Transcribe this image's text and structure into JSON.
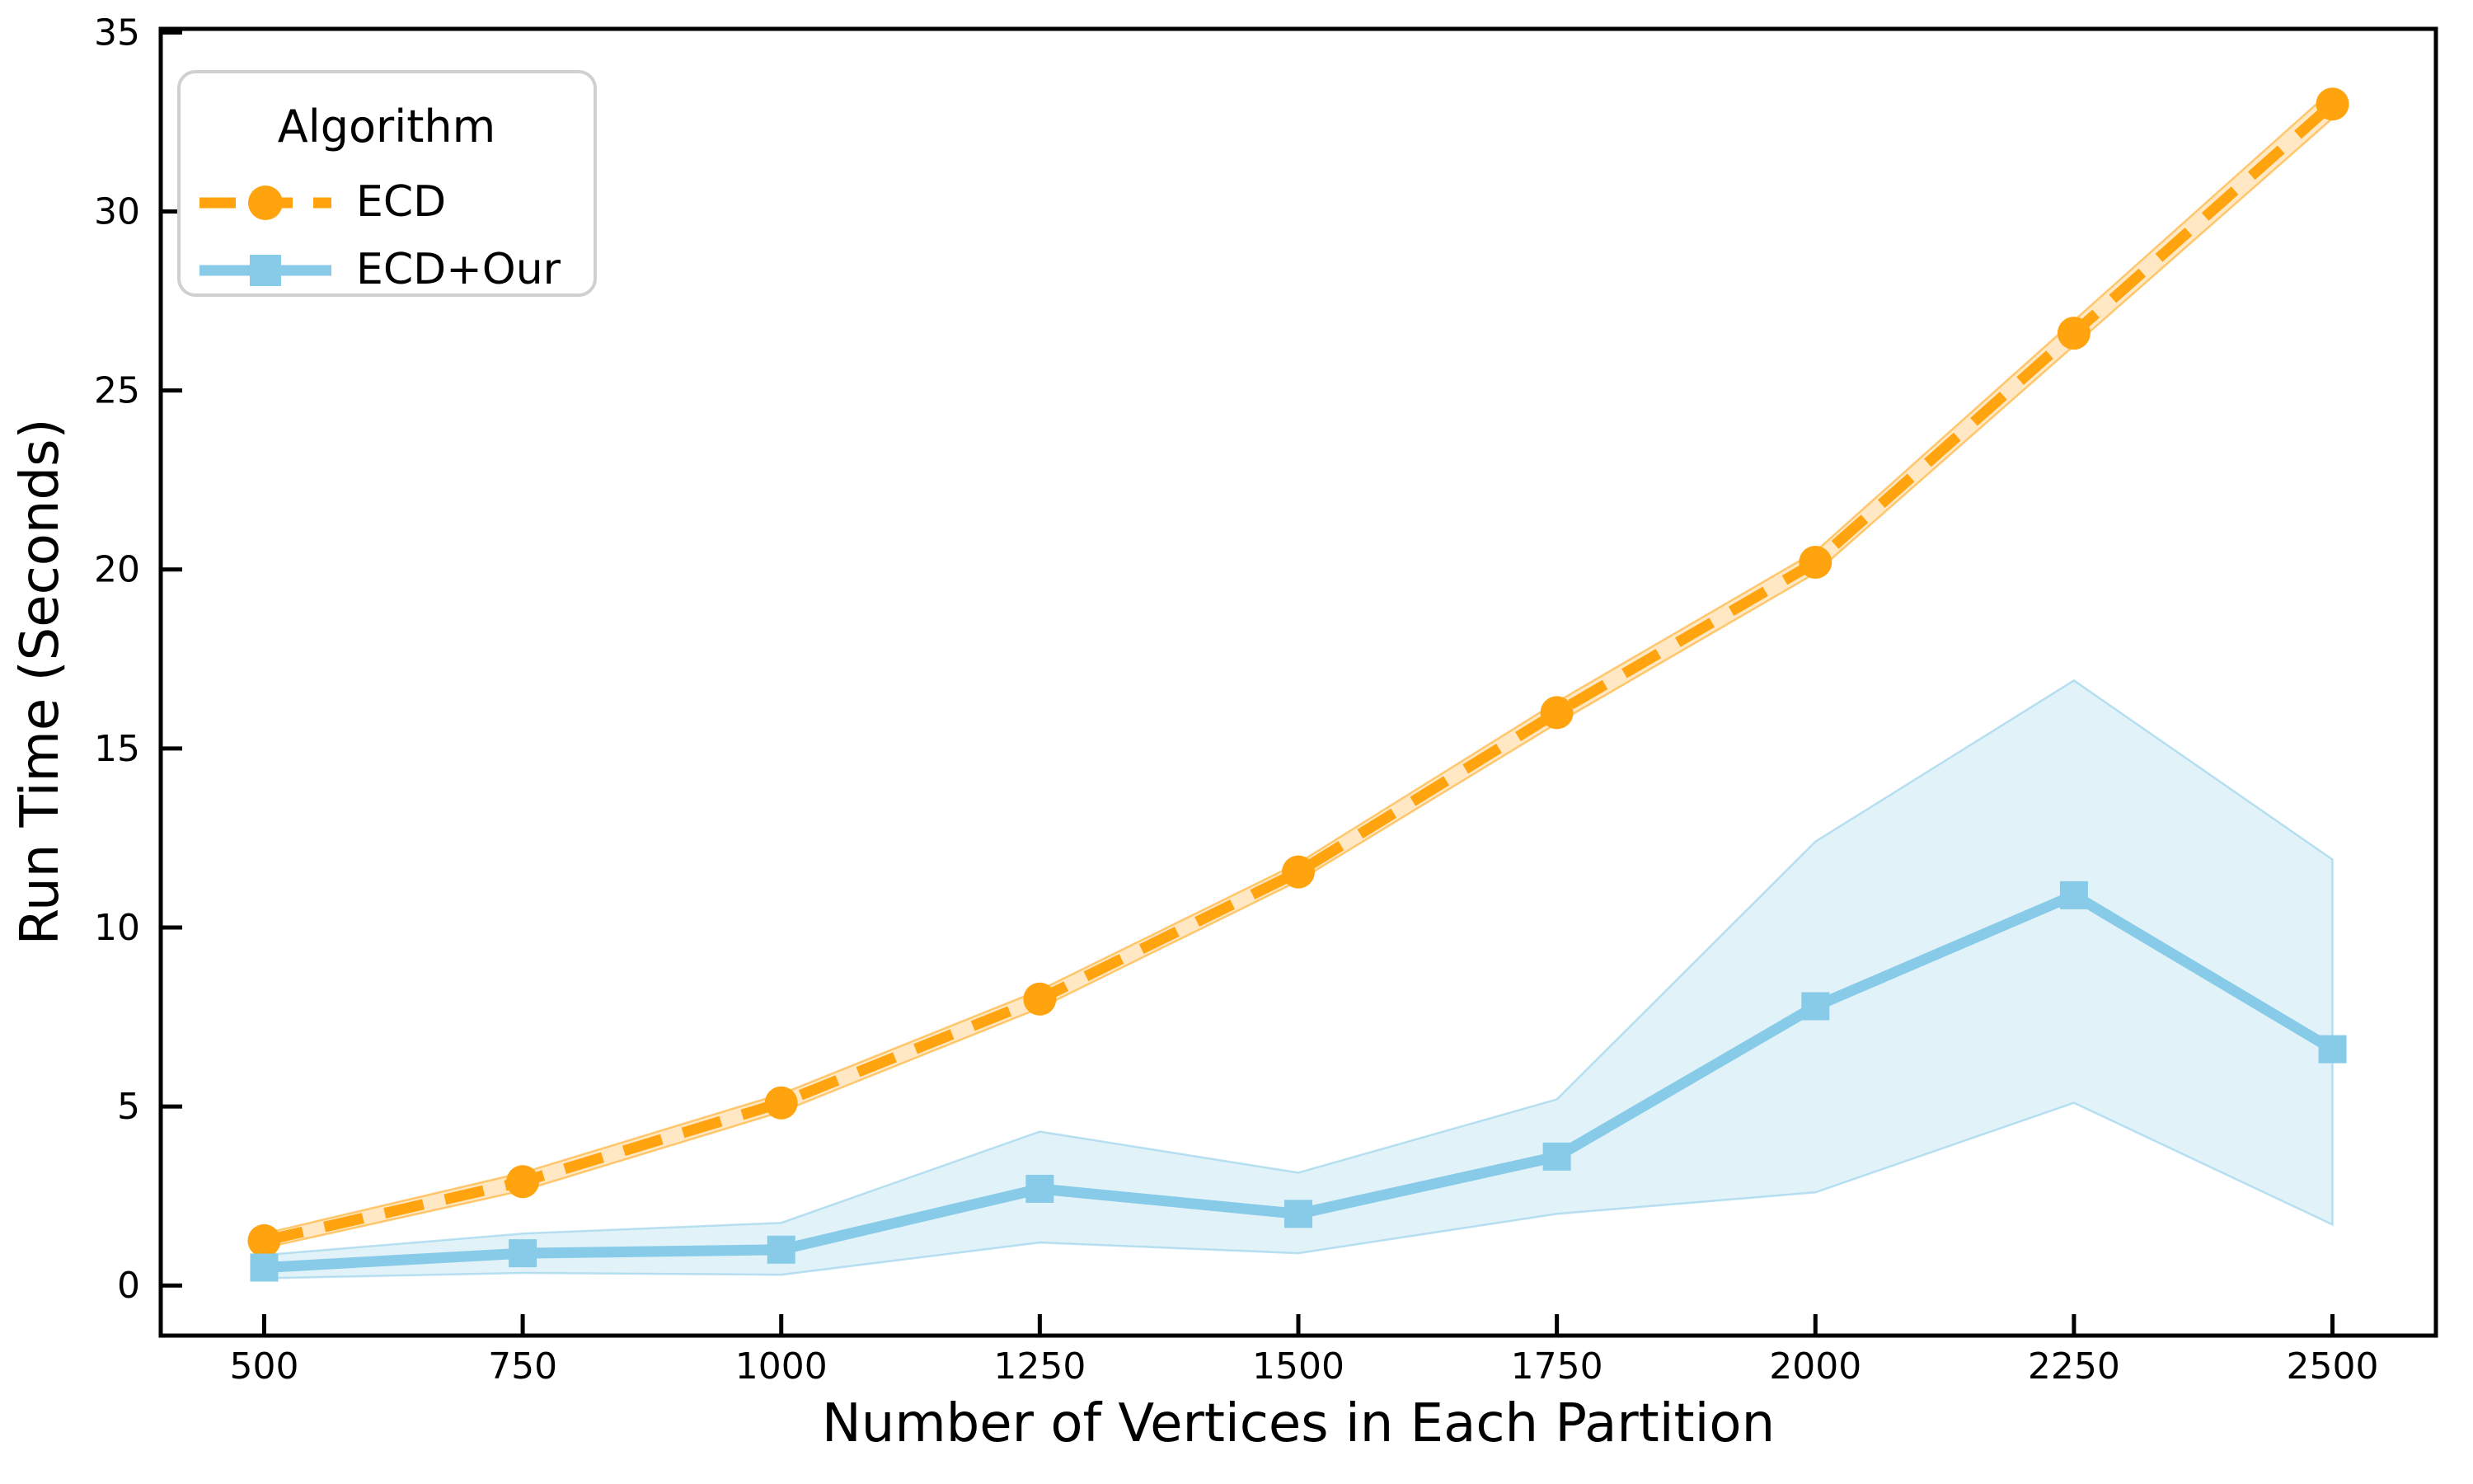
{
  "chart_data": {
    "type": "line",
    "title": "",
    "xlabel": "Number of Vertices in Each Partition",
    "ylabel": "Run Time (Seconds)",
    "x": [
      500,
      750,
      1000,
      1250,
      1500,
      1750,
      2000,
      2250,
      2500
    ],
    "x_tick_labels": [
      "500",
      "750",
      "1000",
      "1250",
      "1500",
      "1750",
      "2000",
      "2250",
      "2500"
    ],
    "y_ticks": [
      0,
      5,
      10,
      15,
      20,
      25,
      30,
      35
    ],
    "y_tick_labels": [
      "0",
      "5",
      "10",
      "15",
      "20",
      "25",
      "30",
      "35"
    ],
    "xlim": [
      400,
      2600
    ],
    "ylim": [
      -1.4,
      35.1
    ],
    "grid": false,
    "legend": {
      "title": "Algorithm",
      "position": "upper-left",
      "entries": [
        {
          "label": "ECD",
          "color": "#FFA30F",
          "linestyle": "dashed",
          "marker": "circle"
        },
        {
          "label": "ECD+Our",
          "color": "#87CBE8",
          "linestyle": "solid",
          "marker": "square"
        }
      ]
    },
    "series": [
      {
        "name": "ECD",
        "color": "#FFA30F",
        "linestyle": "dashed",
        "marker": "circle",
        "values": [
          1.25,
          2.9,
          5.1,
          8.0,
          11.55,
          16.0,
          20.2,
          26.6,
          33.0
        ],
        "band_lower": [
          1.05,
          2.65,
          4.85,
          7.75,
          11.3,
          15.7,
          19.9,
          26.25,
          32.6
        ],
        "band_upper": [
          1.45,
          3.15,
          5.35,
          8.25,
          11.8,
          16.3,
          20.5,
          26.95,
          33.4
        ]
      },
      {
        "name": "ECD+Our",
        "color": "#87CBE8",
        "linestyle": "solid",
        "marker": "square",
        "values": [
          0.5,
          0.9,
          1.0,
          2.7,
          2.0,
          3.6,
          7.8,
          10.9,
          6.6
        ],
        "band_lower": [
          0.2,
          0.35,
          0.3,
          1.2,
          0.9,
          2.0,
          2.6,
          5.1,
          1.7
        ],
        "band_upper": [
          0.85,
          1.45,
          1.75,
          4.3,
          3.15,
          5.2,
          12.4,
          16.9,
          11.9
        ]
      }
    ]
  },
  "style": {
    "background": "#ffffff",
    "axis_color": "#000000",
    "legend_border_color": "#d0d0d0",
    "band_fill_opacity": 0.25,
    "band_edge_opacity": 0.55
  }
}
